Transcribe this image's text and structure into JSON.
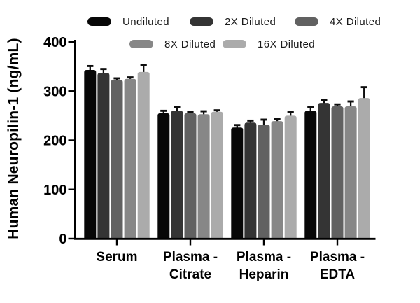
{
  "figure": {
    "background": "#ffffff",
    "axis_color": "#000000",
    "error_bar_color": "#0e0e0e"
  },
  "legend": {
    "position": "top",
    "items": [
      {
        "label": "Undiluted",
        "color": "#070707"
      },
      {
        "label": "2X Diluted",
        "color": "#343434"
      },
      {
        "label": "4X Diluted",
        "color": "#616161"
      },
      {
        "label": "8X Diluted",
        "color": "#878787"
      },
      {
        "label": "16X Diluted",
        "color": "#ababab"
      }
    ]
  },
  "chart_data": {
    "type": "bar",
    "title": "",
    "xlabel": "",
    "ylabel": "Human Neuropilin-1 (ng/mL)",
    "ylim": [
      0,
      400
    ],
    "yticks": [
      0,
      100,
      200,
      300,
      400
    ],
    "grid": false,
    "legend_position": "top",
    "error_bars": "sd_upper",
    "categories": [
      [
        "Serum"
      ],
      [
        "Plasma -",
        "Citrate"
      ],
      [
        "Plasma -",
        "Heparin"
      ],
      [
        "Plasma -",
        "EDTA"
      ]
    ],
    "series": [
      {
        "name": "Undiluted",
        "color": "#070707",
        "values": [
          343,
          255,
          226,
          260
        ],
        "errors": [
          8,
          5,
          5,
          7
        ]
      },
      {
        "name": "2X Diluted",
        "color": "#343434",
        "values": [
          337,
          260,
          236,
          276
        ],
        "errors": [
          8,
          7,
          4,
          6
        ]
      },
      {
        "name": "4X Diluted",
        "color": "#616161",
        "values": [
          323,
          255,
          232,
          269
        ],
        "errors": [
          3,
          3,
          10,
          4
        ]
      },
      {
        "name": "8X Diluted",
        "color": "#878787",
        "values": [
          325,
          253,
          239,
          269
        ],
        "errors": [
          3,
          6,
          4,
          10
        ]
      },
      {
        "name": "16X Diluted",
        "color": "#ababab",
        "values": [
          339,
          258,
          250,
          286
        ],
        "errors": [
          14,
          3,
          7,
          22
        ]
      }
    ]
  }
}
